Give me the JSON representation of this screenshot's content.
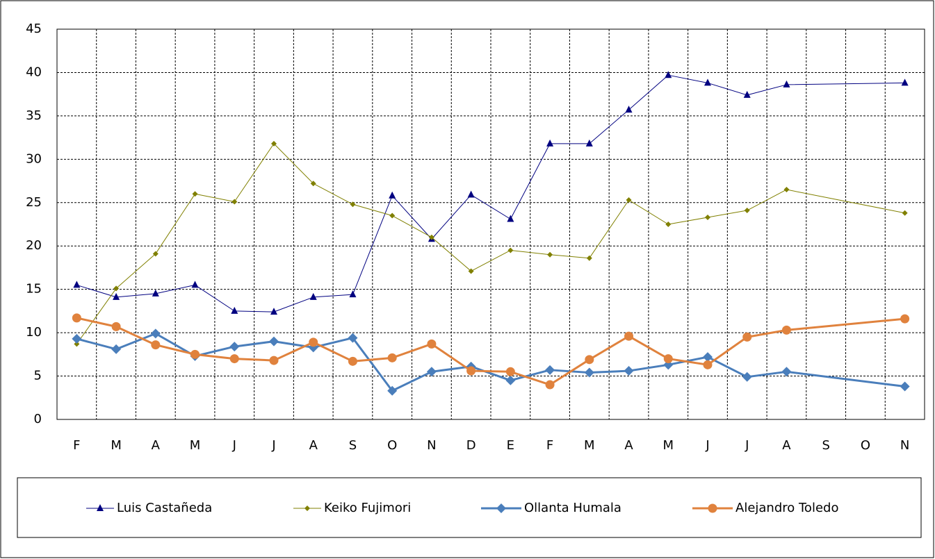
{
  "chart_data": {
    "type": "line",
    "categories": [
      "F",
      "M",
      "A",
      "M",
      "J",
      "J",
      "A",
      "S",
      "O",
      "N",
      "D",
      "E",
      "F",
      "M",
      "A",
      "M",
      "J",
      "J",
      "A",
      "S",
      "O",
      "N"
    ],
    "series": [
      {
        "name": "Luis Castañeda",
        "color": "#000080",
        "marker": "triangle",
        "width": 1,
        "values": [
          15.5,
          14.1,
          14.5,
          15.5,
          12.5,
          12.4,
          14.1,
          14.4,
          25.8,
          20.8,
          25.9,
          23.1,
          31.8,
          31.8,
          35.7,
          39.7,
          38.8,
          37.4,
          38.6,
          null,
          null,
          38.8
        ]
      },
      {
        "name": "Keiko Fujimori",
        "color": "#808000",
        "marker": "diamond",
        "width": 1,
        "values": [
          8.7,
          15.1,
          19.1,
          26.0,
          25.1,
          31.8,
          27.2,
          24.8,
          23.5,
          21.0,
          17.1,
          19.5,
          19.0,
          18.6,
          25.3,
          22.5,
          23.3,
          24.1,
          26.5,
          null,
          null,
          23.8
        ]
      },
      {
        "name": "Ollanta Humala",
        "color": "#4a7ebb",
        "marker": "diamond-large",
        "width": 3,
        "values": [
          9.3,
          8.1,
          9.9,
          7.3,
          8.4,
          9.0,
          8.3,
          9.4,
          3.3,
          5.5,
          6.1,
          4.5,
          5.7,
          5.4,
          5.6,
          6.3,
          7.2,
          4.9,
          5.5,
          null,
          null,
          3.8
        ]
      },
      {
        "name": "Alejandro Toledo",
        "color": "#e0823d",
        "marker": "circle",
        "width": 3,
        "values": [
          11.7,
          10.7,
          8.6,
          7.5,
          7.0,
          6.8,
          8.9,
          6.7,
          7.1,
          8.7,
          5.6,
          5.5,
          4.0,
          6.9,
          9.6,
          7.0,
          6.3,
          9.5,
          10.3,
          null,
          null,
          11.6
        ]
      }
    ],
    "ylim": [
      0,
      45
    ],
    "yticks": [
      0,
      5,
      10,
      15,
      20,
      25,
      30,
      35,
      40,
      45
    ],
    "grid": true,
    "connect_gaps": true,
    "legend": "bottom"
  }
}
